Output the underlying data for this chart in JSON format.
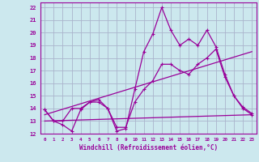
{
  "xlabel": "Windchill (Refroidissement éolien,°C)",
  "background_color": "#cce8ee",
  "grid_color": "#aab4cc",
  "line_color": "#990099",
  "xlim": [
    -0.5,
    23.5
  ],
  "ylim": [
    12,
    22.4
  ],
  "xticks": [
    0,
    1,
    2,
    3,
    4,
    5,
    6,
    7,
    8,
    9,
    10,
    11,
    12,
    13,
    14,
    15,
    16,
    17,
    18,
    19,
    20,
    21,
    22,
    23
  ],
  "yticks": [
    12,
    13,
    14,
    15,
    16,
    17,
    18,
    19,
    20,
    21,
    22
  ],
  "line1_x": [
    0,
    1,
    2,
    3,
    4,
    5,
    6,
    7,
    8,
    9,
    10,
    11,
    12,
    13,
    14,
    15,
    16,
    17,
    18,
    19,
    20,
    21,
    22,
    23
  ],
  "line1_y": [
    13.9,
    13.0,
    12.7,
    12.2,
    13.9,
    14.5,
    14.7,
    14.0,
    12.2,
    12.4,
    15.5,
    18.5,
    19.9,
    22.0,
    20.2,
    19.0,
    19.5,
    19.0,
    20.2,
    18.9,
    16.7,
    15.0,
    14.1,
    13.6
  ],
  "line2_x": [
    0,
    1,
    2,
    3,
    4,
    5,
    6,
    7,
    8,
    9,
    10,
    11,
    12,
    13,
    14,
    15,
    16,
    17,
    18,
    19,
    20,
    21,
    22,
    23
  ],
  "line2_y": [
    13.9,
    13.0,
    13.0,
    14.0,
    14.0,
    14.5,
    14.5,
    14.0,
    12.5,
    12.5,
    14.5,
    15.5,
    16.2,
    17.5,
    17.5,
    17.0,
    16.7,
    17.5,
    18.0,
    18.7,
    16.5,
    15.0,
    14.0,
    13.5
  ],
  "line3_x": [
    0,
    23
  ],
  "line3_y": [
    13.0,
    13.5
  ],
  "line4_x": [
    0,
    23
  ],
  "line4_y": [
    13.5,
    18.5
  ]
}
